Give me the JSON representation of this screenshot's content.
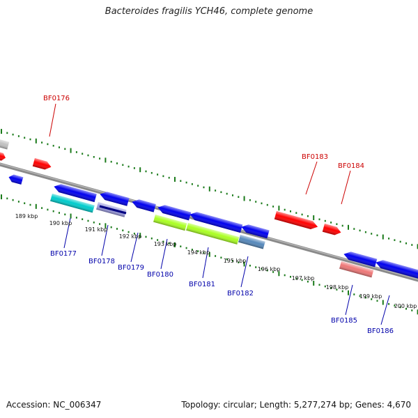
{
  "title": "Bacteroides fragilis YCH46, complete genome",
  "footer": {
    "accession": "Accession: NC_006347",
    "summary": "Topology: circular; Length: 5,277,274 bp; Genes: 4,670"
  },
  "colors": {
    "backbone": "#8a8a8a",
    "ticks": "#1a7a1a",
    "label_forward": "#cc0000",
    "label_reverse": "#0000aa",
    "gene_forward": "#ff0000",
    "gene_reverse": "#0000ee",
    "gene_grey": "#c0c0c0"
  },
  "scale": {
    "units": "kbp",
    "labels": [
      "189 kbp",
      "190 kbp",
      "191 kbp",
      "192 kbp",
      "193 kbp",
      "194 kbp",
      "195 kbp",
      "196 kbp",
      "197 kbp",
      "198 kbp",
      "199 kbp",
      "200 kbp"
    ]
  },
  "genes": [
    {
      "id": "grey-fragment",
      "label": "",
      "strand": "forward",
      "color": "#c0c0c0"
    },
    {
      "id": "red-fragment",
      "label": "",
      "strand": "forward",
      "color": "#ff0000"
    },
    {
      "id": "blue-fragment",
      "label": "",
      "strand": "reverse",
      "color": "#0000ee"
    },
    {
      "id": "BF0176",
      "label": "BF0176",
      "strand": "forward",
      "color": "#ff0000"
    },
    {
      "id": "BF0177",
      "label": "BF0177",
      "strand": "reverse",
      "color": "#0000ee",
      "function_color": "#00cccc"
    },
    {
      "id": "BF0178",
      "label": "BF0178",
      "strand": "reverse",
      "color": "#0000ee",
      "function_color": "#9999dd"
    },
    {
      "id": "BF0179",
      "label": "BF0179",
      "strand": "reverse",
      "color": "#0000ee"
    },
    {
      "id": "BF0180",
      "label": "BF0180",
      "strand": "reverse",
      "color": "#0000ee",
      "function_color": "#aaff22"
    },
    {
      "id": "BF0181",
      "label": "BF0181",
      "strand": "reverse",
      "color": "#0000ee",
      "function_color": "#aaff22"
    },
    {
      "id": "BF0182",
      "label": "BF0182",
      "strand": "reverse",
      "color": "#0000ee",
      "function_color": "#5588bb"
    },
    {
      "id": "BF0183",
      "label": "BF0183",
      "strand": "forward",
      "color": "#ff0000"
    },
    {
      "id": "BF0184",
      "label": "BF0184",
      "strand": "forward",
      "color": "#ff0000"
    },
    {
      "id": "BF0185",
      "label": "BF0185",
      "strand": "reverse",
      "color": "#0000ee",
      "function_color": "#ee7777"
    },
    {
      "id": "BF0186",
      "label": "BF0186",
      "strand": "reverse",
      "color": "#0000ee"
    }
  ]
}
